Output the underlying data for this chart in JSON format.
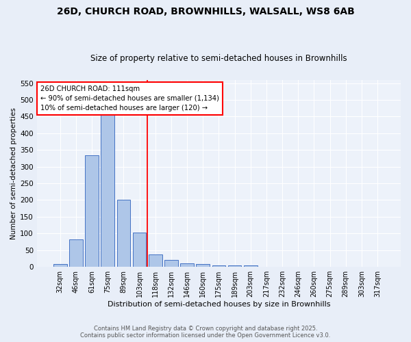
{
  "title_line1": "26D, CHURCH ROAD, BROWNHILLS, WALSALL, WS8 6AB",
  "title_line2": "Size of property relative to semi-detached houses in Brownhills",
  "xlabel": "Distribution of semi-detached houses by size in Brownhills",
  "ylabel": "Number of semi-detached properties",
  "categories": [
    "32sqm",
    "46sqm",
    "61sqm",
    "75sqm",
    "89sqm",
    "103sqm",
    "118sqm",
    "132sqm",
    "146sqm",
    "160sqm",
    "175sqm",
    "189sqm",
    "203sqm",
    "217sqm",
    "232sqm",
    "246sqm",
    "260sqm",
    "275sqm",
    "289sqm",
    "303sqm",
    "317sqm"
  ],
  "values": [
    8,
    82,
    335,
    455,
    201,
    102,
    38,
    20,
    10,
    8,
    4,
    4,
    5,
    0,
    0,
    0,
    0,
    0,
    0,
    0,
    0
  ],
  "bar_color": "#aec6e8",
  "bar_edge_color": "#4472c4",
  "vline_index": 6,
  "vertical_line_color": "red",
  "annotation_line1": "26D CHURCH ROAD: 111sqm",
  "annotation_line2": "← 90% of semi-detached houses are smaller (1,134)",
  "annotation_line3": "10% of semi-detached houses are larger (120) →",
  "annotation_box_color": "white",
  "annotation_box_edge_color": "red",
  "ylim": [
    0,
    560
  ],
  "yticks": [
    0,
    50,
    100,
    150,
    200,
    250,
    300,
    350,
    400,
    450,
    500,
    550
  ],
  "footer_line1": "Contains HM Land Registry data © Crown copyright and database right 2025.",
  "footer_line2": "Contains public sector information licensed under the Open Government Licence v3.0.",
  "bg_color": "#e8eef8",
  "plot_bg_color": "#edf2fa"
}
